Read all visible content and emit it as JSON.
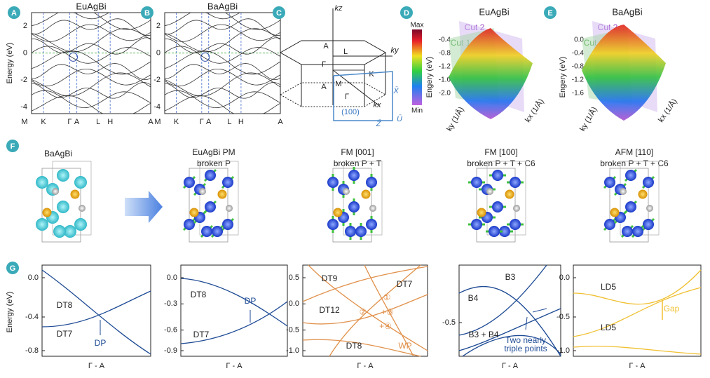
{
  "panels": {
    "A": {
      "letter": "A",
      "title": "EuAgBi",
      "ylabel": "Energy (eV)",
      "yticks": [
        "2",
        "0",
        "-2",
        "-4"
      ],
      "kpoints": [
        "M",
        "K",
        "Γ",
        "A",
        "L",
        "H",
        "A"
      ]
    },
    "B": {
      "letter": "B",
      "title": "BaAgBi",
      "yticks": [
        "2",
        "0",
        "-2",
        "-4"
      ],
      "kpoints": [
        "M",
        "K",
        "Γ",
        "A",
        "L",
        "H",
        "A"
      ]
    },
    "C": {
      "letter": "C",
      "kz": "kz",
      "ky": "ky",
      "kx": "kx",
      "points": [
        "A",
        "L",
        "Γ",
        "M",
        "K",
        "A",
        "Γ"
      ],
      "surface": "(100)",
      "surface_points": [
        "X̄",
        "Z̄",
        "Ū"
      ]
    },
    "D": {
      "letter": "D",
      "title": "EuAgBi",
      "cbar_max": "Max",
      "cbar_min": "Min",
      "cut1": "Cut 1",
      "cut2": "Cut 2",
      "zlabel": "Engery (eV)",
      "zticks": [
        "-0.4",
        "-0.8",
        "-1.2",
        "-1.6",
        "-2.0"
      ],
      "ky_label": "ky (1/Å)",
      "kx_label": "kx (1/Å)"
    },
    "E": {
      "letter": "E",
      "title": "BaAgBi",
      "cut1": "Cut 1",
      "cut2": "Cut 2",
      "zlabel": "Engery (eV)",
      "zticks": [
        "0.0",
        "-0.4",
        "-0.8",
        "-1.2",
        "-1.6"
      ],
      "ky_label": "ky (1/Å)",
      "kx_label": "kx (1/Å)"
    },
    "F": {
      "letter": "F",
      "structures": [
        {
          "title": "BaAgBi"
        },
        {
          "title": "EuAgBi   PM",
          "subtitle": "broken P"
        },
        {
          "title": "FM [001]",
          "subtitle": "broken P + T"
        },
        {
          "title": "FM [100]",
          "subtitle": "broken P + T + C6"
        },
        {
          "title": "AFM [110]",
          "subtitle": "broken P + T + C6"
        }
      ]
    },
    "G": {
      "letter": "G",
      "ylabel": "Energy (eV)",
      "plots": [
        {
          "yticks": [
            "0.0",
            "-0.4",
            "-0.8"
          ],
          "xlabel": "Γ - A",
          "labels": [
            "DT8",
            "DT7",
            "DP"
          ]
        },
        {
          "yticks": [
            "0.0",
            "-0.3",
            "-0.6",
            "-0.9"
          ],
          "xlabel": "Γ - A",
          "labels": [
            "DT8",
            "DT7",
            "DP"
          ]
        },
        {
          "yticks": [
            "0.5",
            "0.0",
            "-0.5",
            "-1.0"
          ],
          "xlabel": "Γ - A",
          "labels": [
            "DT9",
            "DT7",
            "DT12",
            "DT8",
            "WP",
            "-①",
            "②",
            "+③",
            "+④"
          ]
        },
        {
          "yticks": [
            "-0.5"
          ],
          "xlabel": "Γ - A",
          "labels": [
            "B3",
            "B4",
            "B3 + B4",
            "Two nearly",
            "triple points"
          ]
        },
        {
          "yticks": [
            "0.0",
            "-0.5",
            "-1.0"
          ],
          "xlabel": "Γ - A",
          "labels": [
            "LD5",
            "LD5",
            "Gap"
          ]
        }
      ]
    }
  }
}
